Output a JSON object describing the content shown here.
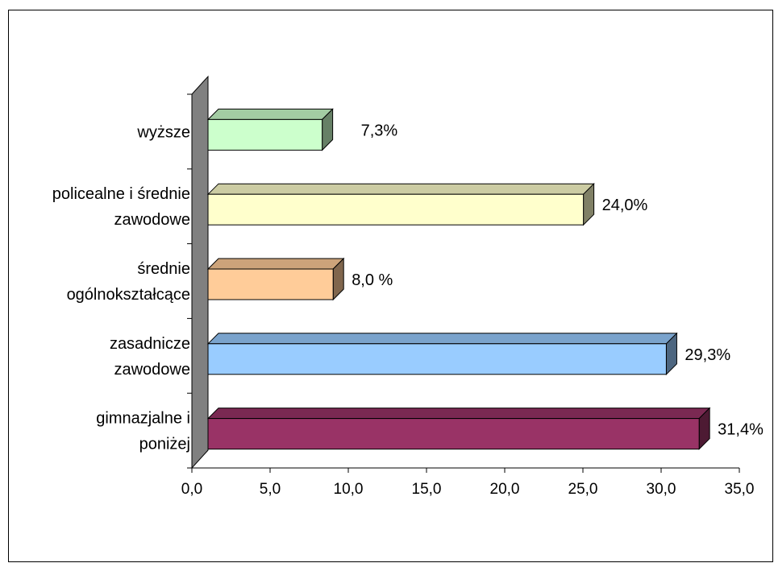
{
  "chart_data": {
    "type": "bar",
    "orientation": "horizontal",
    "three_d": true,
    "categories": [
      [
        "wyższe"
      ],
      [
        "policealne i średnie",
        "zawodowe"
      ],
      [
        "średnie",
        "ogólnokształcące"
      ],
      [
        "zasadnicze",
        "zawodowe"
      ],
      [
        "gimnazjalne i",
        "poniżej"
      ]
    ],
    "values": [
      7.3,
      24.0,
      8.0,
      29.3,
      31.4
    ],
    "data_labels": [
      "7,3%",
      "24,0%",
      "8,0 %",
      "29,3%",
      "31,4%"
    ],
    "colors": [
      "#CCFFCC",
      "#FFFFCC",
      "#FFCC99",
      "#99CCFF",
      "#993366"
    ],
    "xlim": [
      0,
      35
    ],
    "x_ticks": [
      0,
      5,
      10,
      15,
      20,
      25,
      30,
      35
    ],
    "x_tick_labels": [
      "0,0",
      "5,0",
      "10,0",
      "15,0",
      "20,0",
      "25,0",
      "30,0",
      "35,0"
    ],
    "grid": false,
    "legend": "none"
  }
}
